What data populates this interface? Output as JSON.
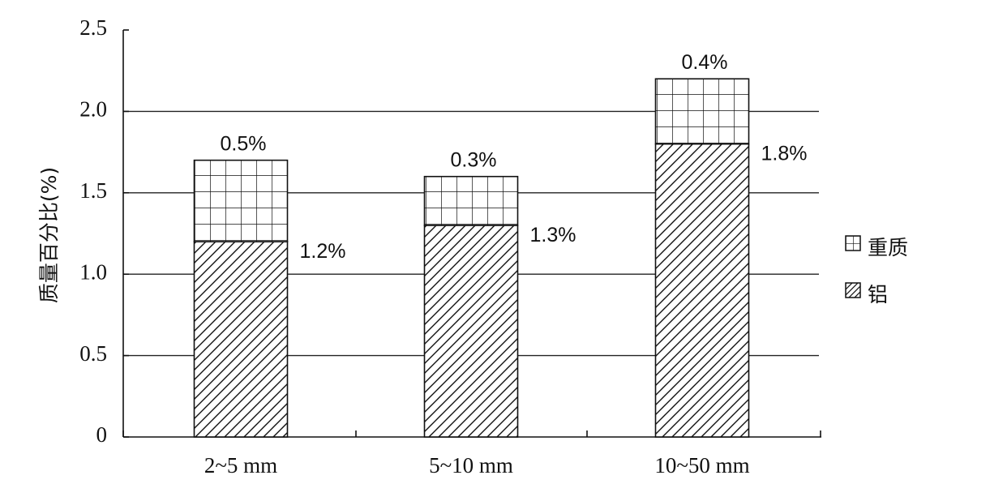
{
  "chart_data": {
    "type": "bar",
    "stacked": true,
    "categories": [
      "2~5 mm",
      "5~10 mm",
      "10~50 mm"
    ],
    "series": [
      {
        "name": "铝",
        "values": [
          1.2,
          1.3,
          1.8
        ],
        "labels": [
          "1.2%",
          "1.3%",
          "1.8%"
        ],
        "pattern": "diagonal-hatch"
      },
      {
        "name": "重质",
        "values": [
          0.5,
          0.3,
          0.4
        ],
        "labels": [
          "0.5%",
          "0.3%",
          "0.4%"
        ],
        "pattern": "grid-hatch"
      }
    ],
    "xlabel": "",
    "ylabel": "质量百分比(%)",
    "ylim": [
      0,
      2.5
    ],
    "yticks": [
      0,
      0.5,
      1.0,
      1.5,
      2.0,
      2.5
    ],
    "ytick_labels": [
      "0",
      "0.5",
      "1.0",
      "1.5",
      "2.0",
      "2.5"
    ],
    "grid": "horizontal",
    "legend_position": "right"
  }
}
